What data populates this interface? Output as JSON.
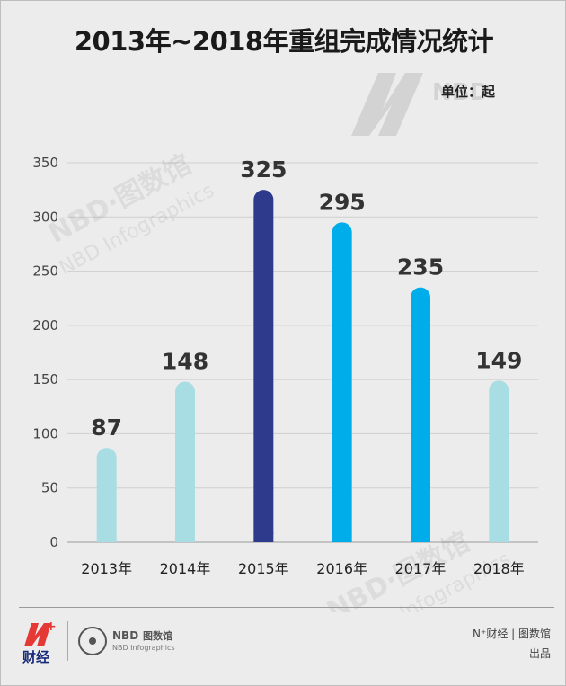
{
  "title": "2013年~2018年重组完成情况统计",
  "unit_label": "单位：起",
  "watermark": "NBD·图数馆",
  "watermark_sub": "NBD Infographics",
  "footer": {
    "brand_letter": "N",
    "brand_name": "财经",
    "nbd_name": "NBD",
    "nbd_cn": "图数馆",
    "nbd_en": "NBD Infographics",
    "credit_line1": "N⁺财经 | 图数馆",
    "credit_line2": "出品"
  },
  "colors": {
    "light": "#a8dde4",
    "bright": "#00adeb",
    "dark": "#2e3a8c",
    "brand_red": "#e53935"
  },
  "chart_data": {
    "type": "bar",
    "categories": [
      "2013年",
      "2014年",
      "2015年",
      "2016年",
      "2017年",
      "2018年"
    ],
    "values": [
      87,
      148,
      325,
      295,
      235,
      149
    ],
    "bar_colors": [
      "light",
      "light",
      "dark",
      "bright",
      "bright",
      "light"
    ],
    "title": "2013年~2018年重组完成情况统计",
    "ylabel": "单位：起",
    "ylim": [
      0,
      350
    ],
    "yticks": [
      0,
      50,
      100,
      150,
      200,
      250,
      300,
      350
    ],
    "grid": true
  }
}
